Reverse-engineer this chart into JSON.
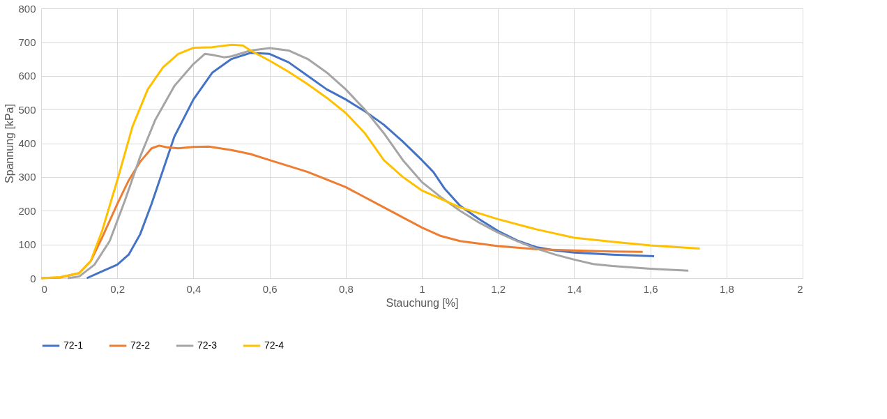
{
  "chart_data": {
    "type": "line",
    "xlabel": "Stauchung [%]",
    "ylabel": "Spannung [kPa]",
    "xlim": [
      0,
      2
    ],
    "ylim": [
      0,
      800
    ],
    "xticks": [
      0,
      {
        "value": 0.2,
        "label": "0,2"
      },
      {
        "value": 0.4,
        "label": "0,4"
      },
      {
        "value": 0.6,
        "label": "0,6"
      },
      {
        "value": 0.8,
        "label": "0,8"
      },
      1,
      {
        "value": 1.2,
        "label": "1,2"
      },
      {
        "value": 1.4,
        "label": "1,4"
      },
      {
        "value": 1.6,
        "label": "1,6"
      },
      {
        "value": 1.8,
        "label": "1,8"
      },
      2
    ],
    "yticks": [
      0,
      100,
      200,
      300,
      400,
      500,
      600,
      700,
      800
    ],
    "grid": true,
    "legend": "bottom",
    "marker": "none",
    "line_style": "solid",
    "series": [
      {
        "name": "72-1",
        "color": "#4472c4",
        "x": [
          0.12,
          0.15,
          0.2,
          0.23,
          0.26,
          0.29,
          0.32,
          0.35,
          0.4,
          0.45,
          0.5,
          0.55,
          0.6,
          0.65,
          0.7,
          0.75,
          0.8,
          0.85,
          0.9,
          0.95,
          1.0,
          1.03,
          1.06,
          1.1,
          1.15,
          1.2,
          1.25,
          1.3,
          1.35,
          1.4,
          1.5,
          1.61
        ],
        "values": [
          0,
          15,
          40,
          70,
          130,
          220,
          320,
          420,
          530,
          610,
          650,
          668,
          665,
          640,
          600,
          560,
          530,
          495,
          455,
          405,
          350,
          315,
          265,
          215,
          175,
          140,
          112,
          92,
          82,
          76,
          70,
          65
        ]
      },
      {
        "name": "72-2",
        "color": "#ed7d31",
        "x": [
          0,
          0.05,
          0.1,
          0.13,
          0.16,
          0.2,
          0.23,
          0.26,
          0.29,
          0.31,
          0.33,
          0.36,
          0.4,
          0.44,
          0.5,
          0.55,
          0.6,
          0.7,
          0.8,
          0.9,
          1.0,
          1.05,
          1.1,
          1.2,
          1.3,
          1.4,
          1.5,
          1.58
        ],
        "values": [
          0,
          2,
          15,
          50,
          120,
          220,
          290,
          345,
          385,
          393,
          388,
          385,
          389,
          390,
          380,
          368,
          350,
          315,
          270,
          210,
          150,
          125,
          110,
          95,
          86,
          82,
          79,
          78
        ]
      },
      {
        "name": "72-3",
        "color": "#a5a5a5",
        "x": [
          0.07,
          0.1,
          0.14,
          0.18,
          0.22,
          0.26,
          0.3,
          0.35,
          0.4,
          0.43,
          0.45,
          0.48,
          0.5,
          0.55,
          0.6,
          0.65,
          0.7,
          0.75,
          0.8,
          0.85,
          0.9,
          0.95,
          1.0,
          1.05,
          1.1,
          1.15,
          1.2,
          1.25,
          1.3,
          1.35,
          1.4,
          1.45,
          1.5,
          1.55,
          1.6,
          1.7
        ],
        "values": [
          0,
          5,
          40,
          110,
          230,
          360,
          470,
          570,
          635,
          665,
          662,
          655,
          658,
          675,
          682,
          675,
          650,
          610,
          560,
          500,
          430,
          350,
          285,
          240,
          200,
          165,
          135,
          110,
          88,
          70,
          55,
          42,
          36,
          32,
          28,
          22
        ]
      },
      {
        "name": "72-4",
        "color": "#ffc000",
        "x": [
          0,
          0.05,
          0.1,
          0.13,
          0.16,
          0.2,
          0.24,
          0.28,
          0.32,
          0.36,
          0.4,
          0.45,
          0.5,
          0.53,
          0.55,
          0.6,
          0.65,
          0.7,
          0.75,
          0.8,
          0.85,
          0.9,
          0.95,
          1.0,
          1.05,
          1.1,
          1.2,
          1.3,
          1.4,
          1.5,
          1.6,
          1.7,
          1.73
        ],
        "values": [
          0,
          3,
          15,
          50,
          140,
          290,
          450,
          560,
          625,
          665,
          683,
          685,
          692,
          690,
          675,
          645,
          612,
          575,
          535,
          490,
          430,
          350,
          300,
          260,
          235,
          210,
          175,
          145,
          120,
          108,
          97,
          90,
          88
        ]
      }
    ]
  }
}
